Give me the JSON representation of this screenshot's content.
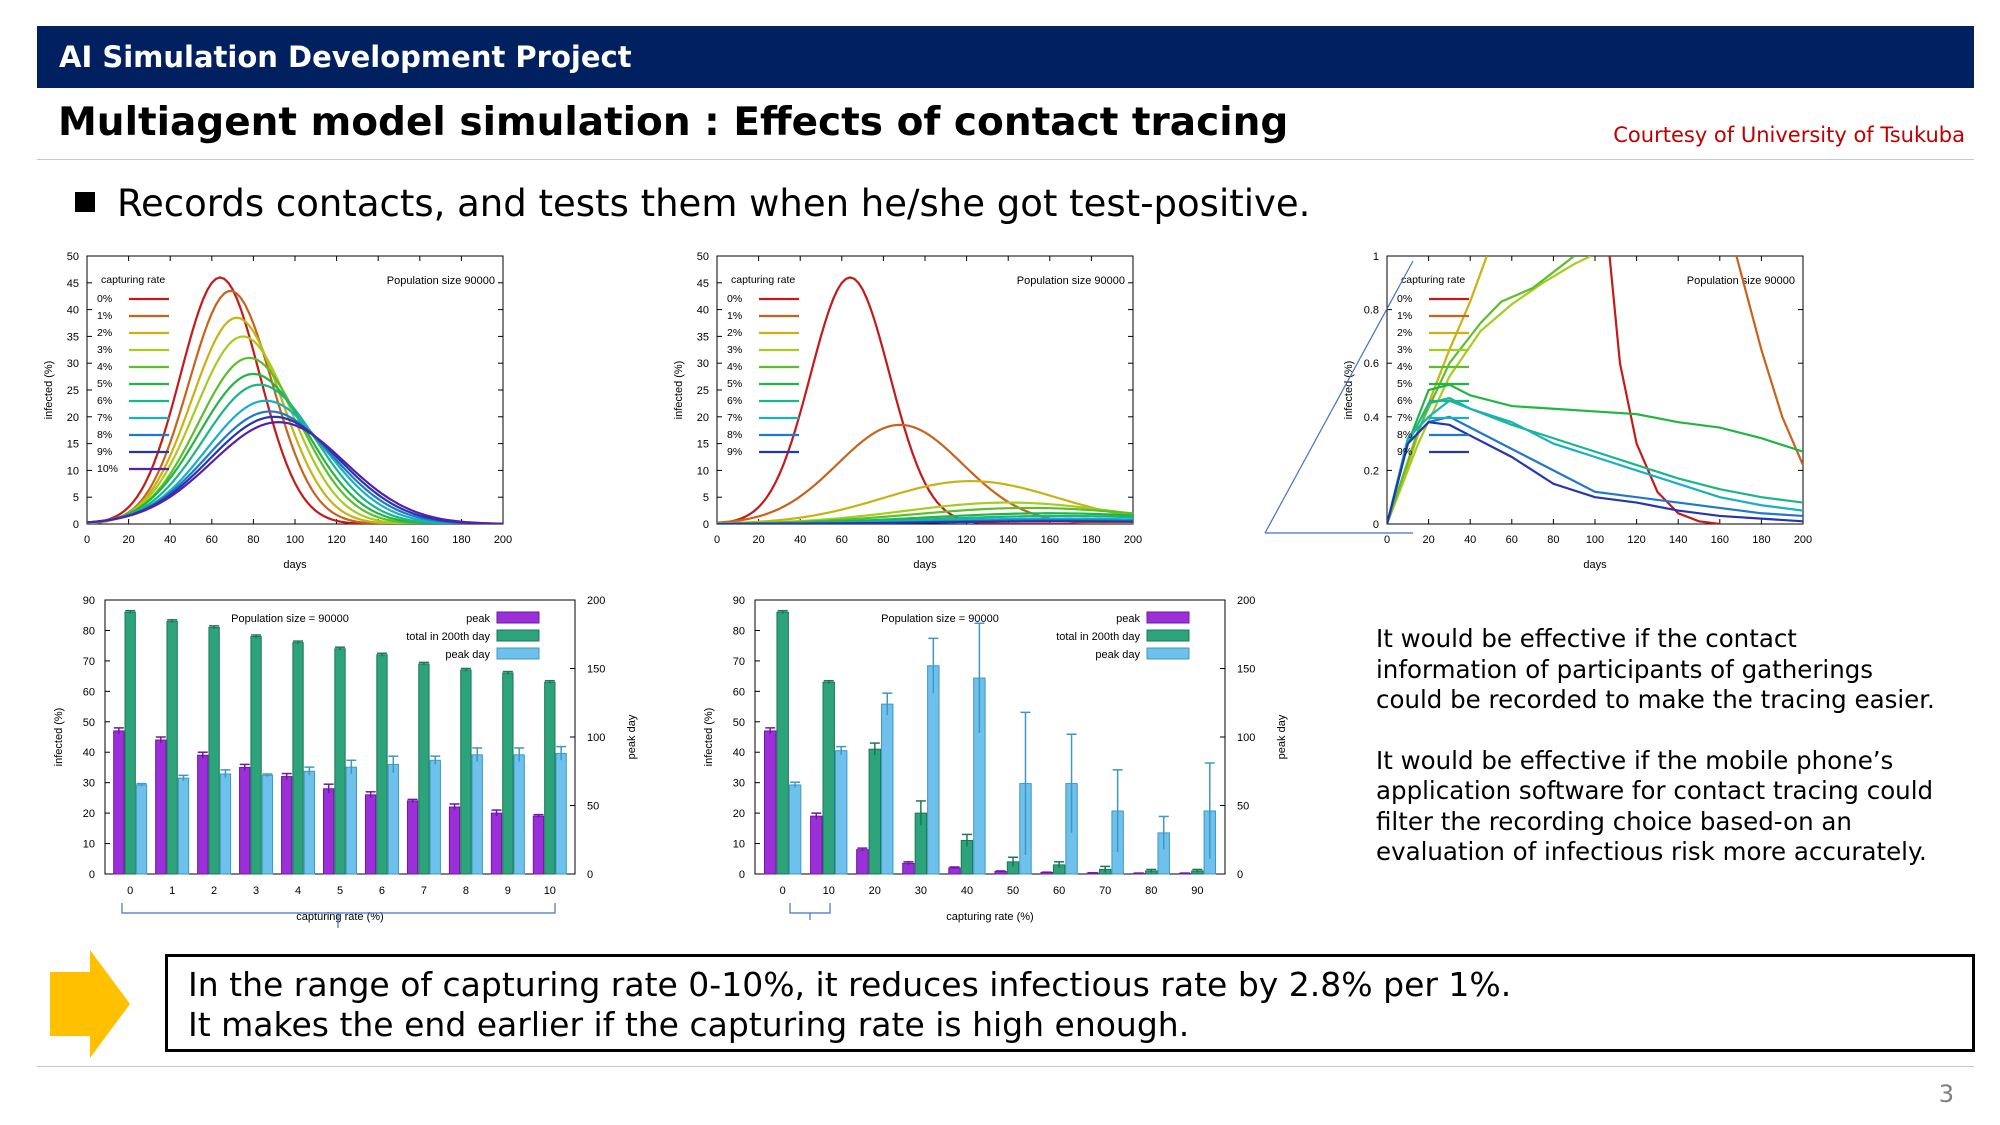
{
  "header": {
    "project": "AI Simulation Development Project"
  },
  "title": "Multiagent model simulation : Effects of contact tracing",
  "courtesy": "Courtesy of University of Tsukuba",
  "bullet": "Records contacts, and tests them when he/she got test-positive.",
  "notes": [
    "It would be effective if the contact information of participants of gatherings could be recorded to make the tracing easier.",
    "It would be effective if the mobile phone’s application software for contact tracing could filter the recording choice based-on an evaluation of infectious risk more accurately."
  ],
  "conclusion": [
    "In the range of capturing rate 0-10%, it reduces infectious rate by 2.8% per 1%.",
    "It makes the end earlier if the capturing rate is high enough."
  ],
  "page_number": "3",
  "colors": {
    "banner": "#002060",
    "courtesy": "#c00000",
    "arrow": "#ffc000",
    "peak": "#9b30d9",
    "total": "#2ca37a",
    "peakday": "#6ec1ea"
  },
  "chart_data": [
    {
      "type": "line",
      "title": "",
      "annotation": "Population size 90000",
      "legend_title": "capturing rate",
      "xlabel": "days",
      "ylabel": "infected (%)",
      "xlim": [
        0,
        200
      ],
      "ylim": [
        0,
        50
      ],
      "xticks": [
        "0",
        "20",
        "40",
        "60",
        "80",
        "100",
        "120",
        "140",
        "160",
        "180",
        "200"
      ],
      "yticks": [
        "0",
        "5",
        "10",
        "15",
        "20",
        "25",
        "30",
        "35",
        "40",
        "45",
        "50"
      ],
      "series": [
        {
          "name": "0%",
          "color": "#c41a1a",
          "peak_day": 64,
          "peak": 46,
          "width": 19
        },
        {
          "name": "1%",
          "color": "#c8621c",
          "peak_day": 69,
          "peak": 43.5,
          "width": 20
        },
        {
          "name": "2%",
          "color": "#c9b213",
          "peak_day": 72,
          "peak": 38.5,
          "width": 21.5
        },
        {
          "name": "3%",
          "color": "#a6cc1f",
          "peak_day": 75,
          "peak": 35,
          "width": 23
        },
        {
          "name": "4%",
          "color": "#5cbe2b",
          "peak_day": 78,
          "peak": 31,
          "width": 24.5
        },
        {
          "name": "5%",
          "color": "#23b544",
          "peak_day": 80,
          "peak": 28,
          "width": 26
        },
        {
          "name": "6%",
          "color": "#1bb58a",
          "peak_day": 83,
          "peak": 26,
          "width": 27
        },
        {
          "name": "7%",
          "color": "#19b0c1",
          "peak_day": 86,
          "peak": 23,
          "width": 28.5
        },
        {
          "name": "8%",
          "color": "#1f78c8",
          "peak_day": 88,
          "peak": 21,
          "width": 30
        },
        {
          "name": "9%",
          "color": "#2436b0",
          "peak_day": 90,
          "peak": 20,
          "width": 31
        },
        {
          "name": "10%",
          "color": "#5a1fa8",
          "peak_day": 92,
          "peak": 19,
          "width": 32
        }
      ]
    },
    {
      "type": "line",
      "title": "",
      "annotation": "Population size 90000",
      "legend_title": "capturing rate",
      "xlabel": "days",
      "ylabel": "infected (%)",
      "xlim": [
        0,
        200
      ],
      "ylim": [
        0,
        50
      ],
      "xticks": [
        "0",
        "20",
        "40",
        "60",
        "80",
        "100",
        "120",
        "140",
        "160",
        "180",
        "200"
      ],
      "yticks": [
        "0",
        "5",
        "10",
        "15",
        "20",
        "25",
        "30",
        "35",
        "40",
        "45",
        "50"
      ],
      "series": [
        {
          "name": "0%",
          "color": "#c41a1a",
          "peak_day": 64,
          "peak": 46,
          "width": 19
        },
        {
          "name": "1%",
          "color": "#c8621c",
          "peak_day": 88,
          "peak": 18.5,
          "width": 30
        },
        {
          "name": "2%",
          "color": "#c9b213",
          "peak_day": 122,
          "peak": 8,
          "width": 42
        },
        {
          "name": "3%",
          "color": "#a6cc1f",
          "peak_day": 140,
          "peak": 4,
          "width": 50
        },
        {
          "name": "4%",
          "color": "#5cbe2b",
          "peak_day": 150,
          "peak": 3,
          "width": 55
        },
        {
          "name": "5%",
          "color": "#23b544",
          "peak_day": 160,
          "peak": 2,
          "width": 60
        },
        {
          "name": "6%",
          "color": "#1bb58a",
          "peak_day": 165,
          "peak": 1.5,
          "width": 60
        },
        {
          "name": "7%",
          "color": "#19b0c1",
          "peak_day": 165,
          "peak": 1,
          "width": 60
        },
        {
          "name": "8%",
          "color": "#1f78c8",
          "peak_day": 165,
          "peak": 0.7,
          "width": 60
        },
        {
          "name": "9%",
          "color": "#2436b0",
          "peak_day": 165,
          "peak": 0.5,
          "width": 60
        }
      ]
    },
    {
      "type": "line",
      "title": "",
      "annotation": "Population size 90000",
      "legend_title": "capturing rate",
      "xlabel": "days",
      "ylabel": "infected (%)",
      "xlim": [
        0,
        200
      ],
      "ylim": [
        0,
        1
      ],
      "xticks": [
        "0",
        "20",
        "40",
        "60",
        "80",
        "100",
        "120",
        "140",
        "160",
        "180",
        "200"
      ],
      "yticks": [
        "0",
        "0.2",
        "0.4",
        "0.6",
        "0.8",
        "1"
      ],
      "series": [
        {
          "name": "0%",
          "color": "#c41a1a",
          "points": [
            [
              107,
              1
            ],
            [
              112,
              0.6
            ],
            [
              120,
              0.3
            ],
            [
              130,
              0.12
            ],
            [
              140,
              0.04
            ],
            [
              150,
              0.01
            ],
            [
              160,
              0
            ]
          ]
        },
        {
          "name": "1%",
          "color": "#c8621c",
          "points": [
            [
              168,
              1
            ],
            [
              180,
              0.65
            ],
            [
              190,
              0.4
            ],
            [
              200,
              0.22
            ]
          ]
        },
        {
          "name": "2%",
          "color": "#c9b213",
          "points": [
            [
              0,
              0
            ],
            [
              10,
              0.22
            ],
            [
              20,
              0.45
            ],
            [
              30,
              0.65
            ],
            [
              40,
              0.83
            ],
            [
              48,
              1
            ]
          ]
        },
        {
          "name": "3%",
          "color": "#a6cc1f",
          "points": [
            [
              0,
              0
            ],
            [
              15,
              0.3
            ],
            [
              30,
              0.55
            ],
            [
              45,
              0.72
            ],
            [
              60,
              0.82
            ],
            [
              75,
              0.9
            ],
            [
              90,
              0.97
            ],
            [
              98,
              1
            ]
          ]
        },
        {
          "name": "4%",
          "color": "#5cbe2b",
          "points": [
            [
              0,
              0
            ],
            [
              15,
              0.35
            ],
            [
              30,
              0.6
            ],
            [
              45,
              0.75
            ],
            [
              55,
              0.83
            ],
            [
              70,
              0.88
            ],
            [
              80,
              0.94
            ],
            [
              90,
              1
            ]
          ]
        },
        {
          "name": "5%",
          "color": "#23b544",
          "points": [
            [
              0,
              0
            ],
            [
              10,
              0.3
            ],
            [
              20,
              0.5
            ],
            [
              30,
              0.52
            ],
            [
              40,
              0.48
            ],
            [
              60,
              0.44
            ],
            [
              80,
              0.43
            ],
            [
              100,
              0.42
            ],
            [
              120,
              0.41
            ],
            [
              140,
              0.38
            ],
            [
              160,
              0.36
            ],
            [
              180,
              0.32
            ],
            [
              200,
              0.27
            ]
          ]
        },
        {
          "name": "6%",
          "color": "#1bb58a",
          "points": [
            [
              0,
              0
            ],
            [
              10,
              0.3
            ],
            [
              20,
              0.45
            ],
            [
              30,
              0.47
            ],
            [
              40,
              0.43
            ],
            [
              60,
              0.37
            ],
            [
              80,
              0.32
            ],
            [
              100,
              0.27
            ],
            [
              120,
              0.22
            ],
            [
              140,
              0.17
            ],
            [
              160,
              0.13
            ],
            [
              180,
              0.1
            ],
            [
              200,
              0.08
            ]
          ]
        },
        {
          "name": "7%",
          "color": "#19b0c1",
          "points": [
            [
              0,
              0
            ],
            [
              10,
              0.32
            ],
            [
              20,
              0.4
            ],
            [
              30,
              0.46
            ],
            [
              40,
              0.43
            ],
            [
              60,
              0.38
            ],
            [
              80,
              0.3
            ],
            [
              100,
              0.25
            ],
            [
              120,
              0.2
            ],
            [
              140,
              0.15
            ],
            [
              160,
              0.1
            ],
            [
              180,
              0.07
            ],
            [
              200,
              0.05
            ]
          ]
        },
        {
          "name": "8%",
          "color": "#1f78c8",
          "points": [
            [
              0,
              0
            ],
            [
              10,
              0.3
            ],
            [
              20,
              0.38
            ],
            [
              30,
              0.4
            ],
            [
              40,
              0.36
            ],
            [
              60,
              0.28
            ],
            [
              80,
              0.2
            ],
            [
              100,
              0.12
            ],
            [
              120,
              0.1
            ],
            [
              140,
              0.08
            ],
            [
              160,
              0.06
            ],
            [
              180,
              0.04
            ],
            [
              200,
              0.03
            ]
          ]
        },
        {
          "name": "9%",
          "color": "#2436b0",
          "points": [
            [
              0,
              0
            ],
            [
              10,
              0.3
            ],
            [
              20,
              0.38
            ],
            [
              30,
              0.37
            ],
            [
              40,
              0.33
            ],
            [
              60,
              0.25
            ],
            [
              80,
              0.15
            ],
            [
              100,
              0.1
            ],
            [
              120,
              0.08
            ],
            [
              140,
              0.05
            ],
            [
              160,
              0.03
            ],
            [
              180,
              0.02
            ],
            [
              200,
              0.01
            ]
          ]
        }
      ]
    },
    {
      "type": "bar",
      "annotation": "Population size = 90000",
      "xlabel": "capturing rate (%)",
      "ylabel": "infected (%)",
      "y2label": "peak day",
      "ylim": [
        0,
        90
      ],
      "y2lim": [
        0,
        200
      ],
      "yticks": [
        "0",
        "10",
        "20",
        "30",
        "40",
        "50",
        "60",
        "70",
        "80",
        "90"
      ],
      "y2ticks": [
        "0",
        "50",
        "100",
        "150",
        "200"
      ],
      "categories": [
        "0",
        "1",
        "2",
        "3",
        "4",
        "5",
        "6",
        "7",
        "8",
        "9",
        "10"
      ],
      "series": [
        {
          "name": "peak",
          "axis": "y",
          "values": [
            47,
            44,
            39,
            35,
            32,
            28,
            26,
            24,
            22,
            20,
            19
          ],
          "err": [
            1,
            1,
            1,
            1,
            1,
            1.5,
            1,
            0.5,
            1,
            1,
            0.5
          ]
        },
        {
          "name": "total in 200th day",
          "axis": "y",
          "values": [
            86,
            83,
            81,
            78,
            76,
            74,
            72,
            69,
            67,
            66,
            63
          ],
          "err": [
            0.5,
            0.5,
            0.5,
            0.5,
            0.5,
            0.5,
            0.5,
            0.5,
            0.5,
            0.5,
            0.5
          ]
        },
        {
          "name": "peak day",
          "axis": "y2",
          "values": [
            65,
            70,
            73,
            72,
            75,
            78,
            80,
            83,
            87,
            87,
            88
          ],
          "err": [
            1,
            2,
            3,
            1,
            3,
            5,
            6,
            3,
            5,
            5,
            5
          ]
        }
      ]
    },
    {
      "type": "bar",
      "annotation": "Population size = 90000",
      "xlabel": "capturing rate (%)",
      "ylabel": "infected (%)",
      "y2label": "peak day",
      "ylim": [
        0,
        90
      ],
      "y2lim": [
        0,
        200
      ],
      "yticks": [
        "0",
        "10",
        "20",
        "30",
        "40",
        "50",
        "60",
        "70",
        "80",
        "90"
      ],
      "y2ticks": [
        "0",
        "50",
        "100",
        "150",
        "200"
      ],
      "categories": [
        "0",
        "10",
        "20",
        "30",
        "40",
        "50",
        "60",
        "70",
        "80",
        "90"
      ],
      "series": [
        {
          "name": "peak",
          "axis": "y",
          "values": [
            47,
            19,
            8,
            3.5,
            2,
            0.8,
            0.5,
            0.3,
            0.2,
            0.2
          ],
          "err": [
            1,
            1,
            0.5,
            0.5,
            0.3,
            0.2,
            0.1,
            0.1,
            0.1,
            0.1
          ]
        },
        {
          "name": "total in 200th day",
          "axis": "y",
          "values": [
            86,
            63,
            41,
            20,
            11,
            4,
            3,
            1.5,
            1,
            1
          ],
          "err": [
            0.5,
            0.5,
            2,
            4,
            2,
            1.5,
            1,
            1,
            0.5,
            0.5
          ]
        },
        {
          "name": "peak day",
          "axis": "y2",
          "values": [
            65,
            90,
            124,
            152,
            143,
            66,
            66,
            46,
            30,
            46
          ],
          "err": [
            2,
            3,
            8,
            20,
            40,
            52,
            36,
            30,
            12,
            35
          ]
        }
      ]
    }
  ]
}
